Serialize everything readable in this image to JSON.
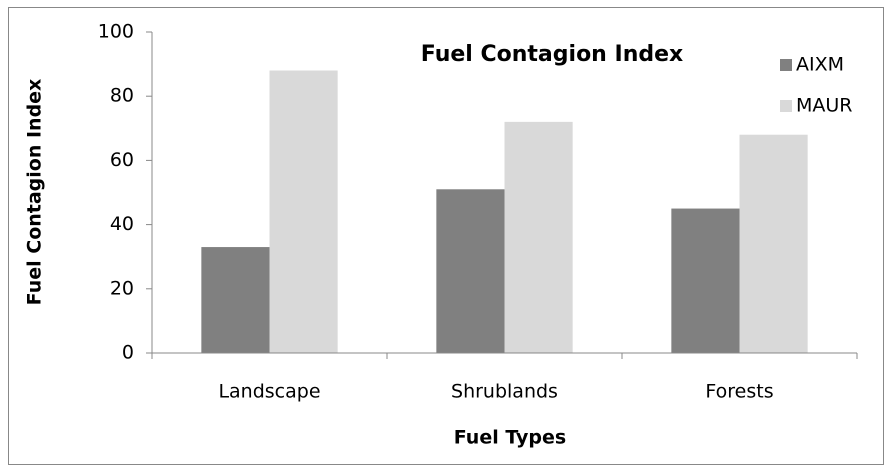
{
  "chart_data": {
    "type": "bar",
    "title": "Fuel Contagion Index",
    "xlabel": "Fuel Types",
    "ylabel": "Fuel Contagion Index",
    "categories": [
      "Landscape",
      "Shrublands",
      "Forests"
    ],
    "series": [
      {
        "name": "AIXM",
        "color": "#808080",
        "values": [
          33,
          51,
          45
        ]
      },
      {
        "name": "MAUR",
        "color": "#d9d9d9",
        "values": [
          88,
          72,
          68
        ]
      }
    ],
    "ylim": [
      0,
      100
    ],
    "yticks": [
      0,
      20,
      40,
      60,
      80,
      100
    ],
    "grid": false,
    "legend": "upper right"
  }
}
